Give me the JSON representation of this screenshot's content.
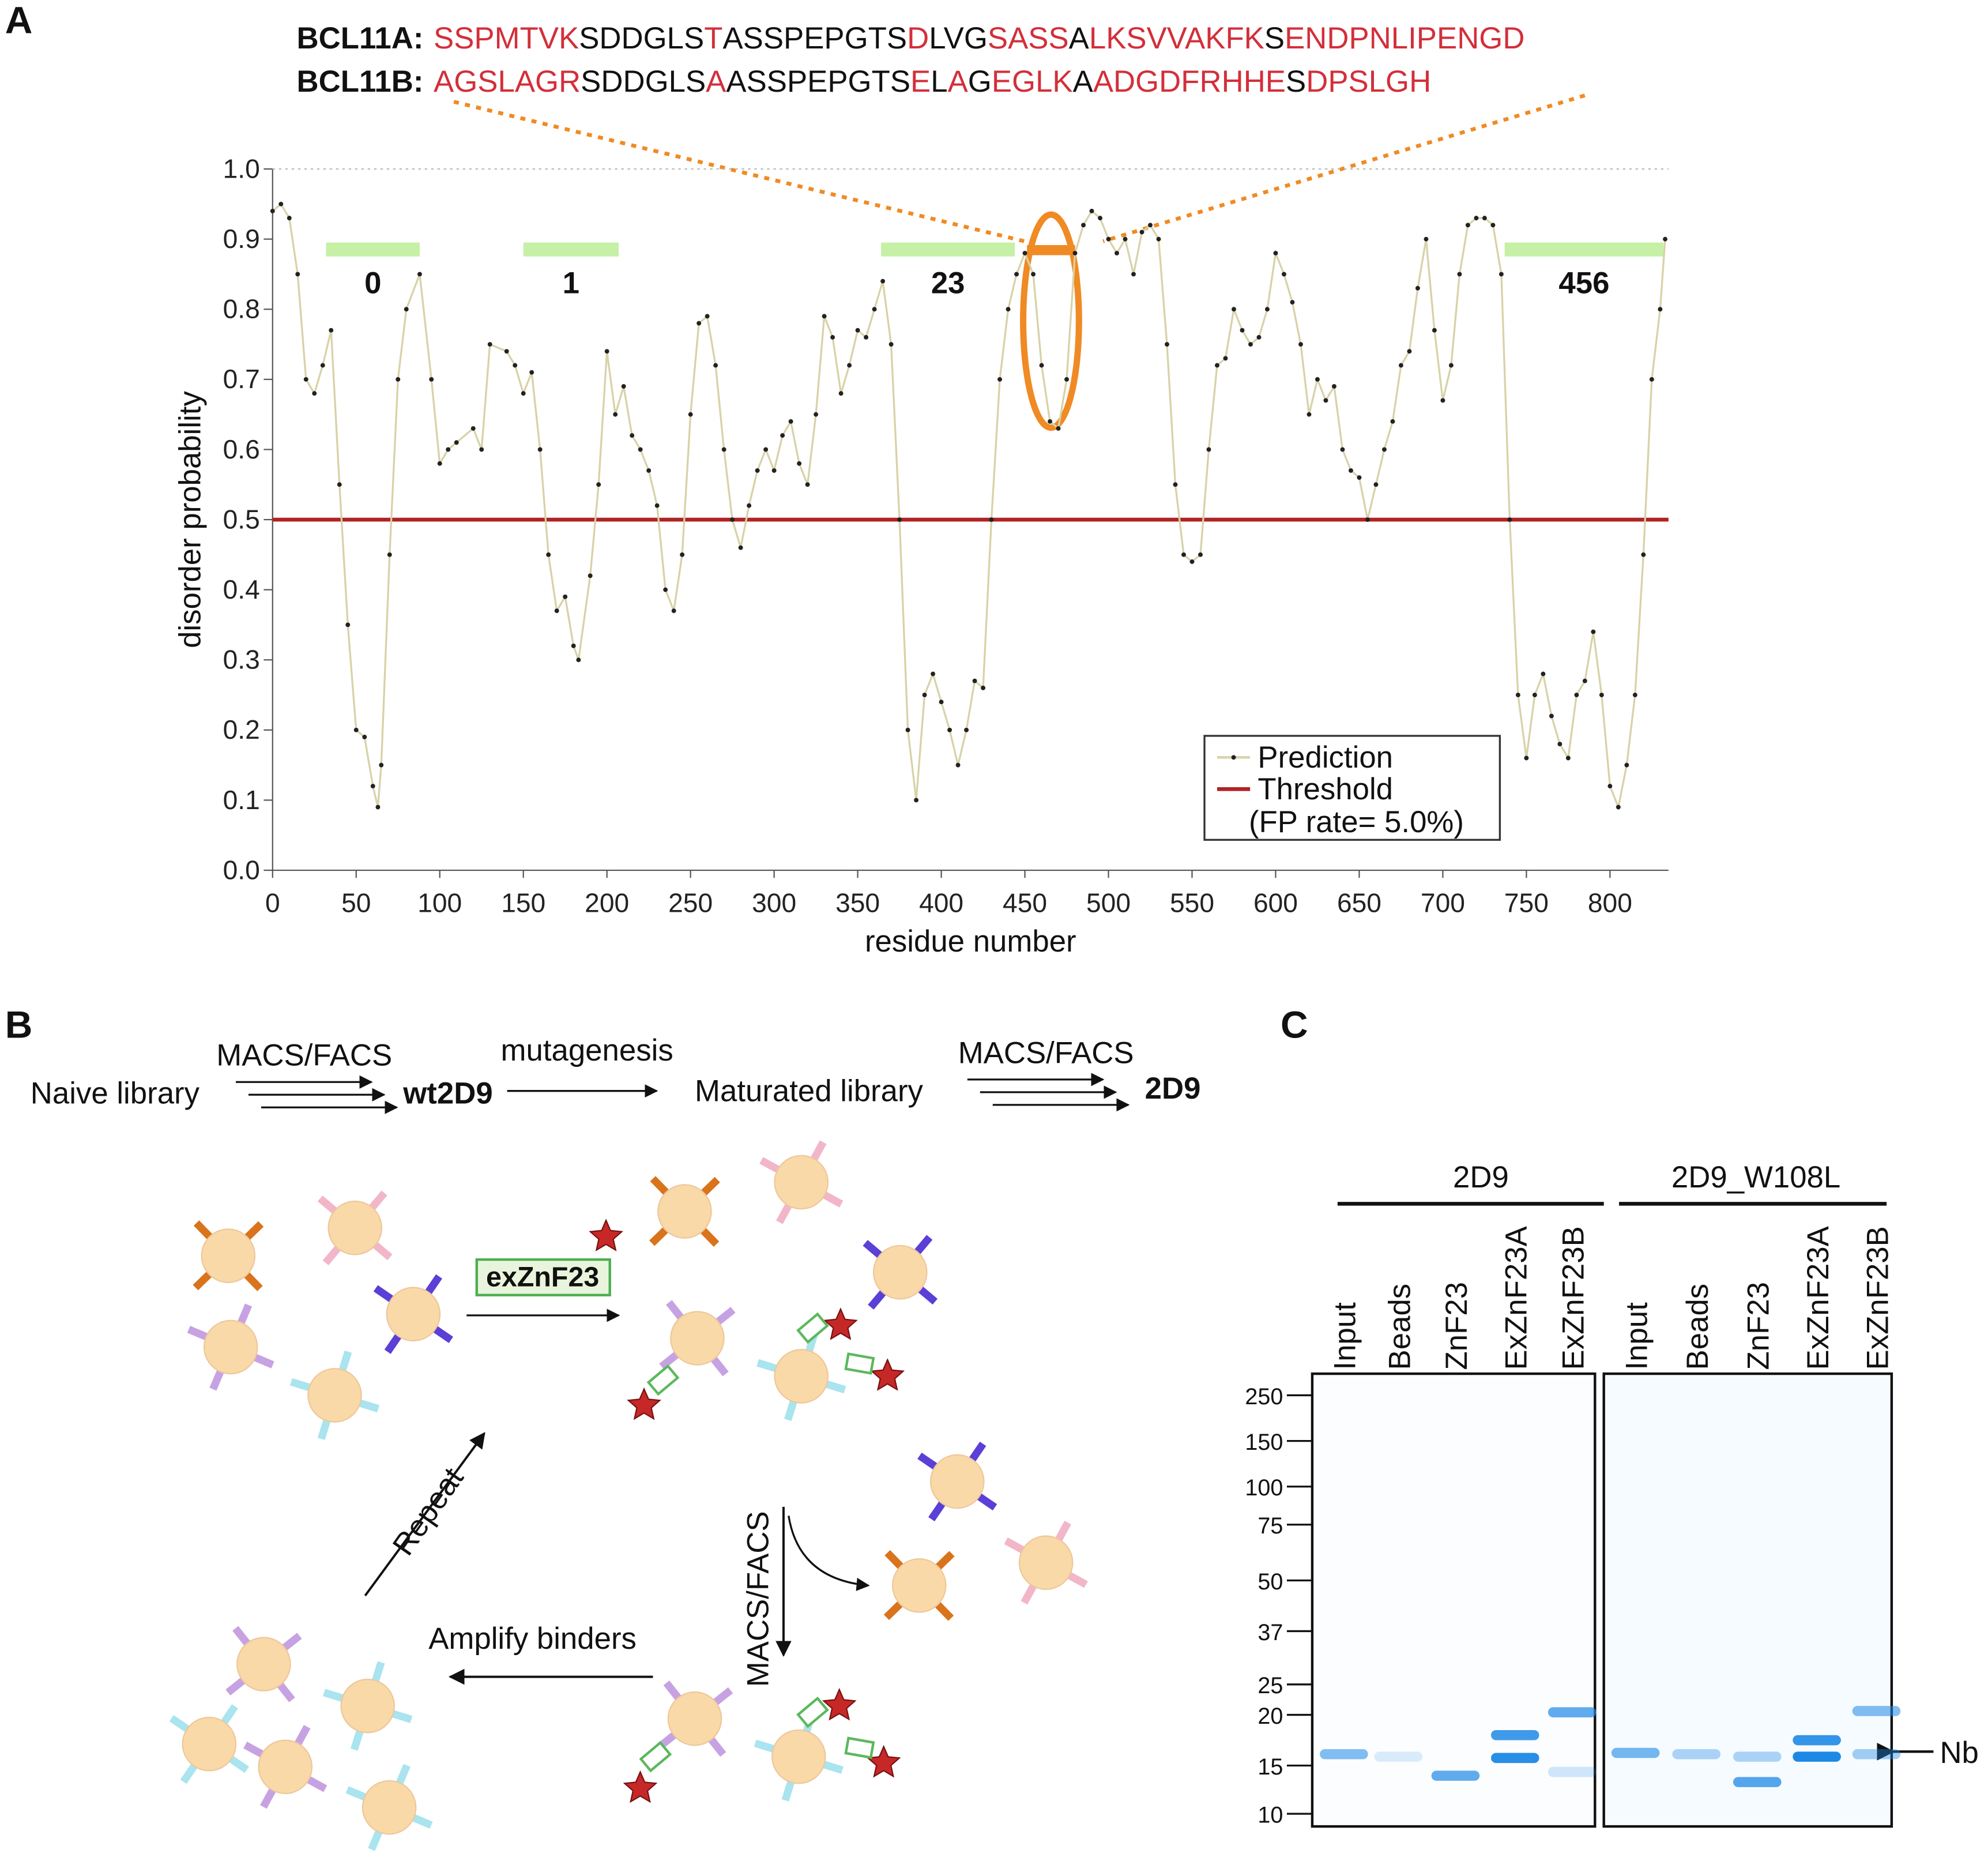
{
  "panels": {
    "a": "A",
    "b": "B",
    "c": "C"
  },
  "sequences": [
    {
      "name": "BCL11A:",
      "segments": [
        {
          "text": "SSPMTVK",
          "red": true
        },
        {
          "text": "SDDGLS",
          "red": false
        },
        {
          "text": "T",
          "red": true
        },
        {
          "text": "ASSPEPGTS",
          "red": false
        },
        {
          "text": "D",
          "red": true
        },
        {
          "text": "LVG",
          "red": false
        },
        {
          "text": "SASS",
          "red": true
        },
        {
          "text": "A",
          "red": false
        },
        {
          "text": "LKSVVAKFK",
          "red": true
        },
        {
          "text": "S",
          "red": false
        },
        {
          "text": "ENDPNLIPENGD",
          "red": true
        }
      ]
    },
    {
      "name": "BCL11B:",
      "segments": [
        {
          "text": "AGSLAGR",
          "red": true
        },
        {
          "text": "SDDGLS",
          "red": false
        },
        {
          "text": "A",
          "red": true
        },
        {
          "text": "ASSPEPGTS",
          "red": false
        },
        {
          "text": "E",
          "red": true
        },
        {
          "text": "L",
          "red": false
        },
        {
          "text": "A",
          "red": true
        },
        {
          "text": "G",
          "red": false
        },
        {
          "text": "EGLK",
          "red": true
        },
        {
          "text": "A",
          "red": false
        },
        {
          "text": "ADGDFRHHE",
          "red": true
        },
        {
          "text": "S",
          "red": false
        },
        {
          "text": "DPSLGH",
          "red": true
        }
      ]
    }
  ],
  "chart_data": {
    "type": "line",
    "xlabel": "residue number",
    "ylabel": "disorder probability",
    "xlim": [
      0,
      835
    ],
    "ylim": [
      0,
      1
    ],
    "xticks": [
      0,
      50,
      100,
      150,
      200,
      250,
      300,
      350,
      400,
      450,
      500,
      550,
      600,
      650,
      700,
      750,
      800
    ],
    "yticks": [
      {
        "value": 0,
        "label": "0.0"
      },
      0.1,
      0.2,
      0.3,
      0.4,
      0.5,
      0.6,
      0.7,
      0.8,
      0.9,
      {
        "value": 1,
        "label": "1.0"
      }
    ],
    "x": [
      0,
      5,
      10,
      15,
      20,
      25,
      30,
      35,
      40,
      45,
      50,
      55,
      60,
      63,
      65,
      70,
      75,
      80,
      88,
      95,
      100,
      105,
      110,
      120,
      125,
      130,
      140,
      145,
      150,
      155,
      160,
      165,
      170,
      175,
      180,
      183,
      190,
      195,
      200,
      205,
      210,
      215,
      220,
      225,
      230,
      235,
      240,
      245,
      250,
      255,
      260,
      265,
      270,
      275,
      280,
      285,
      290,
      295,
      300,
      305,
      310,
      315,
      320,
      325,
      330,
      335,
      340,
      345,
      350,
      355,
      360,
      365,
      370,
      375,
      380,
      385,
      390,
      395,
      400,
      405,
      410,
      415,
      420,
      425,
      430,
      435,
      440,
      445,
      450,
      455,
      460,
      465,
      470,
      475,
      480,
      485,
      490,
      495,
      500,
      505,
      510,
      515,
      520,
      525,
      530,
      535,
      540,
      545,
      550,
      555,
      560,
      565,
      570,
      575,
      580,
      585,
      590,
      595,
      600,
      605,
      610,
      615,
      620,
      625,
      630,
      635,
      640,
      645,
      650,
      655,
      660,
      665,
      670,
      675,
      680,
      685,
      690,
      695,
      700,
      705,
      710,
      715,
      720,
      725,
      730,
      735,
      740,
      745,
      750,
      755,
      760,
      765,
      770,
      775,
      780,
      785,
      790,
      795,
      800,
      805,
      810,
      815,
      820,
      825,
      830,
      833
    ],
    "series": [
      {
        "name": "Prediction",
        "color": "#222222",
        "line_color": "#d8d2a8",
        "values": [
          0.94,
          0.95,
          0.93,
          0.85,
          0.7,
          0.68,
          0.72,
          0.77,
          0.55,
          0.35,
          0.2,
          0.19,
          0.12,
          0.09,
          0.15,
          0.45,
          0.7,
          0.8,
          0.85,
          0.7,
          0.58,
          0.6,
          0.61,
          0.63,
          0.6,
          0.75,
          0.74,
          0.72,
          0.68,
          0.71,
          0.6,
          0.45,
          0.37,
          0.39,
          0.32,
          0.3,
          0.42,
          0.55,
          0.74,
          0.65,
          0.69,
          0.62,
          0.6,
          0.57,
          0.52,
          0.4,
          0.37,
          0.45,
          0.65,
          0.78,
          0.79,
          0.72,
          0.6,
          0.5,
          0.46,
          0.52,
          0.57,
          0.6,
          0.57,
          0.62,
          0.64,
          0.58,
          0.55,
          0.65,
          0.79,
          0.76,
          0.68,
          0.72,
          0.77,
          0.76,
          0.8,
          0.84,
          0.75,
          0.5,
          0.2,
          0.1,
          0.25,
          0.28,
          0.24,
          0.2,
          0.15,
          0.2,
          0.27,
          0.26,
          0.5,
          0.7,
          0.8,
          0.85,
          0.88,
          0.85,
          0.72,
          0.64,
          0.63,
          0.7,
          0.88,
          0.92,
          0.94,
          0.93,
          0.9,
          0.88,
          0.9,
          0.85,
          0.91,
          0.92,
          0.9,
          0.75,
          0.55,
          0.45,
          0.44,
          0.45,
          0.6,
          0.72,
          0.73,
          0.8,
          0.77,
          0.75,
          0.76,
          0.8,
          0.88,
          0.85,
          0.81,
          0.75,
          0.65,
          0.7,
          0.67,
          0.69,
          0.6,
          0.57,
          0.56,
          0.5,
          0.55,
          0.6,
          0.64,
          0.72,
          0.74,
          0.83,
          0.9,
          0.77,
          0.67,
          0.72,
          0.85,
          0.92,
          0.93,
          0.93,
          0.92,
          0.85,
          0.5,
          0.25,
          0.16,
          0.25,
          0.28,
          0.22,
          0.18,
          0.16,
          0.25,
          0.27,
          0.34,
          0.25,
          0.12,
          0.09,
          0.15,
          0.25,
          0.45,
          0.7,
          0.8,
          0.9
        ]
      }
    ],
    "threshold": {
      "name": "Threshold",
      "value": 0.5,
      "color": "#b22222",
      "note": "(FP rate= 5.0%)"
    },
    "regions": [
      {
        "start": 32,
        "end": 88,
        "label": "0"
      },
      {
        "start": 150,
        "end": 207,
        "label": "1"
      },
      {
        "start": 364,
        "end": 444,
        "label": "23"
      },
      {
        "start": 737,
        "end": 832,
        "label": "456"
      }
    ],
    "region_color": "#c6f0a6",
    "grid": true
  },
  "workflow": {
    "naive": "Naive library",
    "sel1": "MACS/FACS",
    "wt": "wt2D9",
    "mut": "mutagenesis",
    "matured": "Maturated library",
    "sel2": "MACS/FACS",
    "final": "2D9",
    "antigen": "exZnF23",
    "repeat": "Repeat",
    "sel3": "MACS/FACS",
    "amplify": "Amplify binders"
  },
  "gel": {
    "groups": [
      "2D9",
      "2D9_W108L"
    ],
    "lanes": [
      "Input",
      "Beads",
      "ZnF23",
      "ExZnF23A",
      "ExZnF23B",
      "Input",
      "Beads",
      "ZnF23",
      "ExZnF23A",
      "ExZnF23B"
    ],
    "markers": [
      250,
      150,
      100,
      75,
      50,
      37,
      25,
      20,
      15,
      10
    ],
    "band_label": "Nb"
  }
}
